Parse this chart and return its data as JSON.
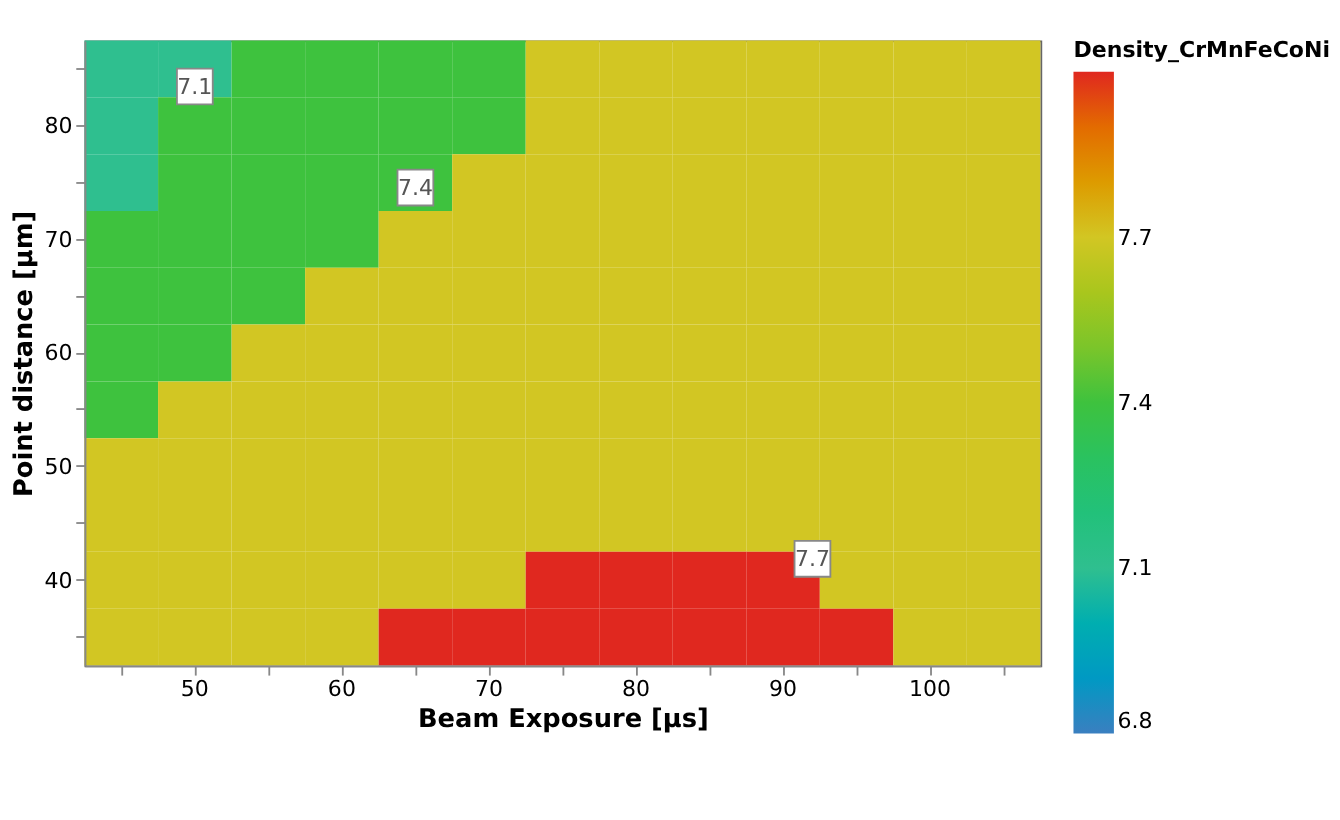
{
  "chart_data": {
    "type": "heatmap",
    "xlabel": "Beam Exposure [µs]",
    "ylabel": "Point distance [µm]",
    "clabel": "Density_CrMnFeCoNi",
    "categories": [
      null,
      "50",
      null,
      "60",
      null,
      "70",
      null,
      "80",
      null,
      "90",
      null,
      "100",
      null
    ],
    "y_categories": [
      null,
      "80",
      null,
      "70",
      null,
      "60",
      null,
      "50",
      null,
      "40",
      null
    ],
    "cells": [
      [
        7.1,
        7.1,
        7.4,
        7.4,
        7.4,
        7.4,
        7.7,
        7.7,
        7.7,
        7.7,
        7.7,
        7.7,
        7.7
      ],
      [
        7.1,
        7.4,
        7.4,
        7.4,
        7.4,
        7.4,
        7.7,
        7.7,
        7.7,
        7.7,
        7.7,
        7.7,
        7.7
      ],
      [
        7.1,
        7.4,
        7.4,
        7.4,
        7.4,
        7.7,
        7.7,
        7.7,
        7.7,
        7.7,
        7.7,
        7.7,
        7.7
      ],
      [
        7.4,
        7.4,
        7.4,
        7.4,
        7.7,
        7.7,
        7.7,
        7.7,
        7.7,
        7.7,
        7.7,
        7.7,
        7.7
      ],
      [
        7.4,
        7.4,
        7.4,
        7.7,
        7.7,
        7.7,
        7.7,
        7.7,
        7.7,
        7.7,
        7.7,
        7.7,
        7.7
      ],
      [
        7.4,
        7.4,
        7.7,
        7.7,
        7.7,
        7.7,
        7.7,
        7.7,
        7.7,
        7.7,
        7.7,
        7.7,
        7.7
      ],
      [
        7.4,
        7.7,
        7.7,
        7.7,
        7.7,
        7.7,
        7.7,
        7.7,
        7.7,
        7.7,
        7.7,
        7.7,
        7.7
      ],
      [
        7.7,
        7.7,
        7.7,
        7.7,
        7.7,
        7.7,
        7.7,
        7.7,
        7.7,
        7.7,
        7.7,
        7.7,
        7.7
      ],
      [
        7.7,
        7.7,
        7.7,
        7.7,
        7.7,
        7.7,
        7.7,
        7.7,
        7.7,
        7.7,
        7.7,
        7.7,
        7.7
      ],
      [
        7.7,
        7.7,
        7.7,
        7.7,
        7.7,
        7.7,
        8.0,
        8.0,
        8.0,
        8.0,
        7.7,
        7.7,
        7.7
      ],
      [
        7.7,
        7.7,
        7.7,
        7.7,
        8.0,
        8.0,
        8.0,
        8.0,
        8.0,
        8.0,
        8.0,
        7.7,
        7.7
      ]
    ],
    "clim": [
      6.8,
      8.0
    ],
    "cticks": [
      6.8,
      7.1,
      7.4,
      7.7
    ],
    "annotations": [
      "7.1",
      "7.4",
      "7.7"
    ],
    "grid": false
  }
}
